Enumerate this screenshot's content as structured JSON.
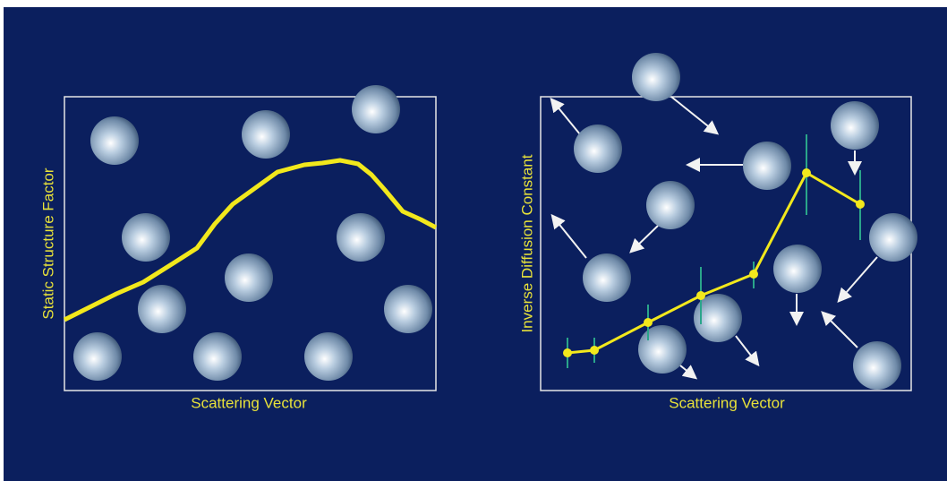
{
  "left_panel": {
    "y_label": "Static Structure Factor",
    "x_label": "Scattering Vector"
  },
  "right_panel": {
    "y_label": "Inverse Diffusion Constant",
    "x_label": "Scattering Vector"
  }
}
